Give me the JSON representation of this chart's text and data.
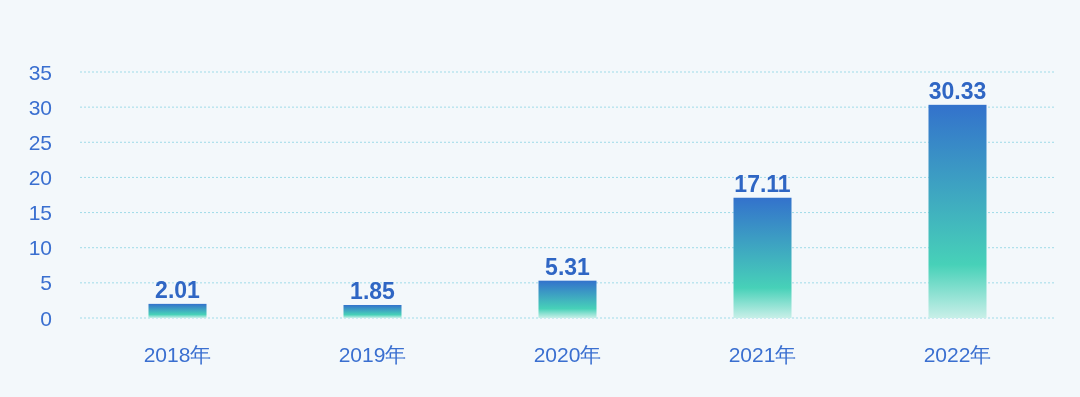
{
  "chart_data": {
    "type": "bar",
    "categories": [
      "2018年",
      "2019年",
      "2020年",
      "2021年",
      "2022年"
    ],
    "values": [
      2.01,
      1.85,
      5.31,
      17.11,
      30.33
    ],
    "color": "#3372cc",
    "ylim": [
      0,
      35
    ],
    "yticks": [
      0,
      5,
      10,
      15,
      20,
      25,
      30,
      35
    ],
    "grid": "y",
    "data_labels": true
  }
}
